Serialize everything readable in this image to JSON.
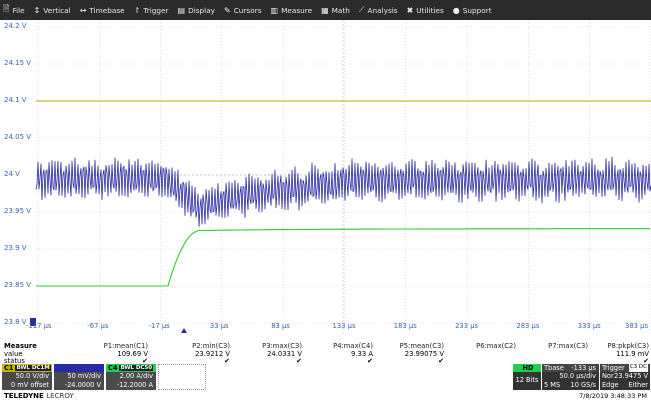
{
  "menu": [
    {
      "icon": "file-icon",
      "glyph": "🗎",
      "label": "File"
    },
    {
      "icon": "vertical-icon",
      "glyph": "↕",
      "label": "Vertical"
    },
    {
      "icon": "timebase-icon",
      "glyph": "↔",
      "label": "Timebase"
    },
    {
      "icon": "trigger-icon",
      "glyph": "↾",
      "label": "Trigger"
    },
    {
      "icon": "display-icon",
      "glyph": "▤",
      "label": "Display"
    },
    {
      "icon": "cursors-icon",
      "glyph": "✎",
      "label": "Cursors"
    },
    {
      "icon": "measure-icon",
      "glyph": "▥",
      "label": "Measure"
    },
    {
      "icon": "math-icon",
      "glyph": "▦",
      "label": "Math"
    },
    {
      "icon": "analysis-icon",
      "glyph": "⟋",
      "label": "Analysis"
    },
    {
      "icon": "utilities-icon",
      "glyph": "✖",
      "label": "Utilities"
    },
    {
      "icon": "support-icon",
      "glyph": "●",
      "label": "Support"
    }
  ],
  "y_axis": [
    "24.2 V",
    "24.15 V",
    "24.1 V",
    "24.05 V",
    "24 V",
    "23.95 V",
    "23.9 V",
    "23.85 V",
    "23.8 V"
  ],
  "x_axis": [
    "-117 µs",
    "-67 µs",
    "-17 µs",
    "33 µs",
    "83 µs",
    "133 µs",
    "183 µs",
    "233 µs",
    "283 µs",
    "333 µs",
    "383 µs"
  ],
  "colors": {
    "c1": "#c7b300",
    "c2": "#2a2aa6",
    "c3": "#2fcc2f",
    "c4": "#1dd14e",
    "grid": "#c8c8c8",
    "axis_text": "#3a66b0"
  },
  "measure": {
    "title": "Measure",
    "row_value": "value",
    "row_status": "status",
    "params": [
      {
        "name": "P1:mean(C1)",
        "value": "109.69 V",
        "status": "✔"
      },
      {
        "name": "P2:min(C3)",
        "value": "23.9212 V",
        "status": "✔"
      },
      {
        "name": "P3:max(C3)",
        "value": "24.0331 V",
        "status": "✔"
      },
      {
        "name": "P4:max(C4)",
        "value": "9.33 A",
        "status": "✔"
      },
      {
        "name": "P5:mean(C3)",
        "value": "23.99075 V",
        "status": "✔"
      },
      {
        "name": "P6:max(C2)",
        "value": "",
        "status": ""
      },
      {
        "name": "P7:max(C3)",
        "value": "",
        "status": ""
      },
      {
        "name": "P8:pkpk(C3)",
        "value": "111.9 mV",
        "status": "✔"
      }
    ]
  },
  "channels": {
    "c1": {
      "label": "C1",
      "flags": "BWL DC1M",
      "scale": "50.0 V/div",
      "offset": "0 mV offset"
    },
    "c3": {
      "label": "",
      "flags": "",
      "scale": "50 mV/div",
      "offset": "-24.0000 V"
    },
    "c4": {
      "label": "C4",
      "flags": "BWL DC50",
      "scale": "2.00 A/div",
      "offset": "-12.2000 A"
    }
  },
  "timebase": {
    "hd": "HD",
    "bits": "12 Bits",
    "label": "Tbase",
    "delay": "-133 µs",
    "per_div": "50.0 µs/div",
    "samples": "5 MS",
    "rate": "10 GS/s"
  },
  "trigger": {
    "label": "Trigger",
    "mode": "Nor",
    "level": "23.9475 V",
    "type": "Edge",
    "slope": "Either"
  },
  "brand": {
    "name": "TELEDYNE",
    "sub": "LECROY"
  },
  "datetime": "7/8/2019 3:48:33 PM"
}
